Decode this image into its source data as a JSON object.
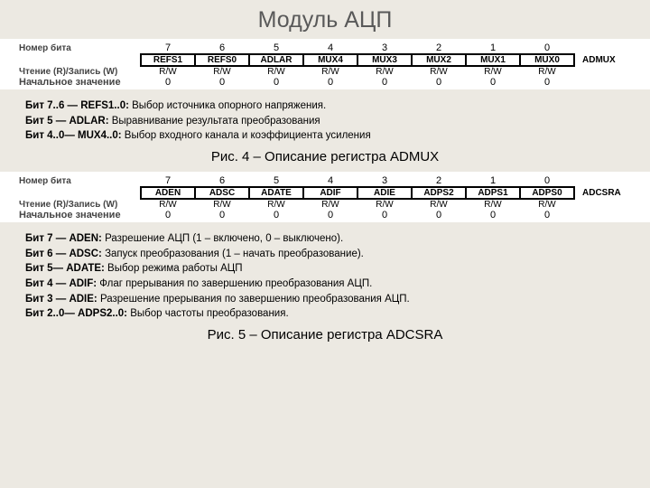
{
  "title": "Модуль АЦП",
  "row_labels": {
    "bitnum": "Номер бита",
    "rw": "Чтение (R)/Запись (W)",
    "init": "Начальное значение"
  },
  "bits": [
    "7",
    "6",
    "5",
    "4",
    "3",
    "2",
    "1",
    "0"
  ],
  "reg1": {
    "name": "ADMUX",
    "cells": [
      "REFS1",
      "REFS0",
      "ADLAR",
      "MUX4",
      "MUX3",
      "MUX2",
      "MUX1",
      "MUX0"
    ],
    "rw": [
      "R/W",
      "R/W",
      "R/W",
      "R/W",
      "R/W",
      "R/W",
      "R/W",
      "R/W"
    ],
    "init": [
      "0",
      "0",
      "0",
      "0",
      "0",
      "0",
      "0",
      "0"
    ],
    "desc": [
      {
        "b": "Бит 7..6 — REFS1..0:",
        "t": " Выбор источника опорного напряжения."
      },
      {
        "b": "Бит 5 — ADLAR:",
        "t": " Выравнивание результата преобразования"
      },
      {
        "b": "Бит 4..0— MUX4..0:",
        "t": " Выбор входного канала и коэффициента усиления"
      }
    ],
    "caption": "Рис. 4 – Описание регистра ADMUX"
  },
  "reg2": {
    "name": "ADCSRA",
    "cells": [
      "ADEN",
      "ADSC",
      "ADATE",
      "ADIF",
      "ADIE",
      "ADPS2",
      "ADPS1",
      "ADPS0"
    ],
    "rw": [
      "R/W",
      "R/W",
      "R/W",
      "R/W",
      "R/W",
      "R/W",
      "R/W",
      "R/W"
    ],
    "init": [
      "0",
      "0",
      "0",
      "0",
      "0",
      "0",
      "0",
      "0"
    ],
    "desc": [
      {
        "b": "Бит 7 — ADEN:",
        "t": " Разрешение АЦП (1 – включено, 0 – выключено)."
      },
      {
        "b": "Бит 6 — ADSC:",
        "t": " Запуск преобразования (1 – начать преобразование)."
      },
      {
        "b": "Бит 5— ADATE:",
        "t": " Выбор режима работы АЦП"
      },
      {
        "b": "Бит 4 — ADIF:",
        "t": " Флаг прерывания по завершению преобразования АЦП."
      },
      {
        "b": "Бит 3 — ADIE:",
        "t": " Разрешение прерывания по завершению преобразования АЦП."
      },
      {
        "b": "Бит 2..0— ADPS2..0:",
        "t": " Выбор частоты преобразования."
      }
    ],
    "caption": "Рис. 5 – Описание регистра ADCSRA"
  }
}
